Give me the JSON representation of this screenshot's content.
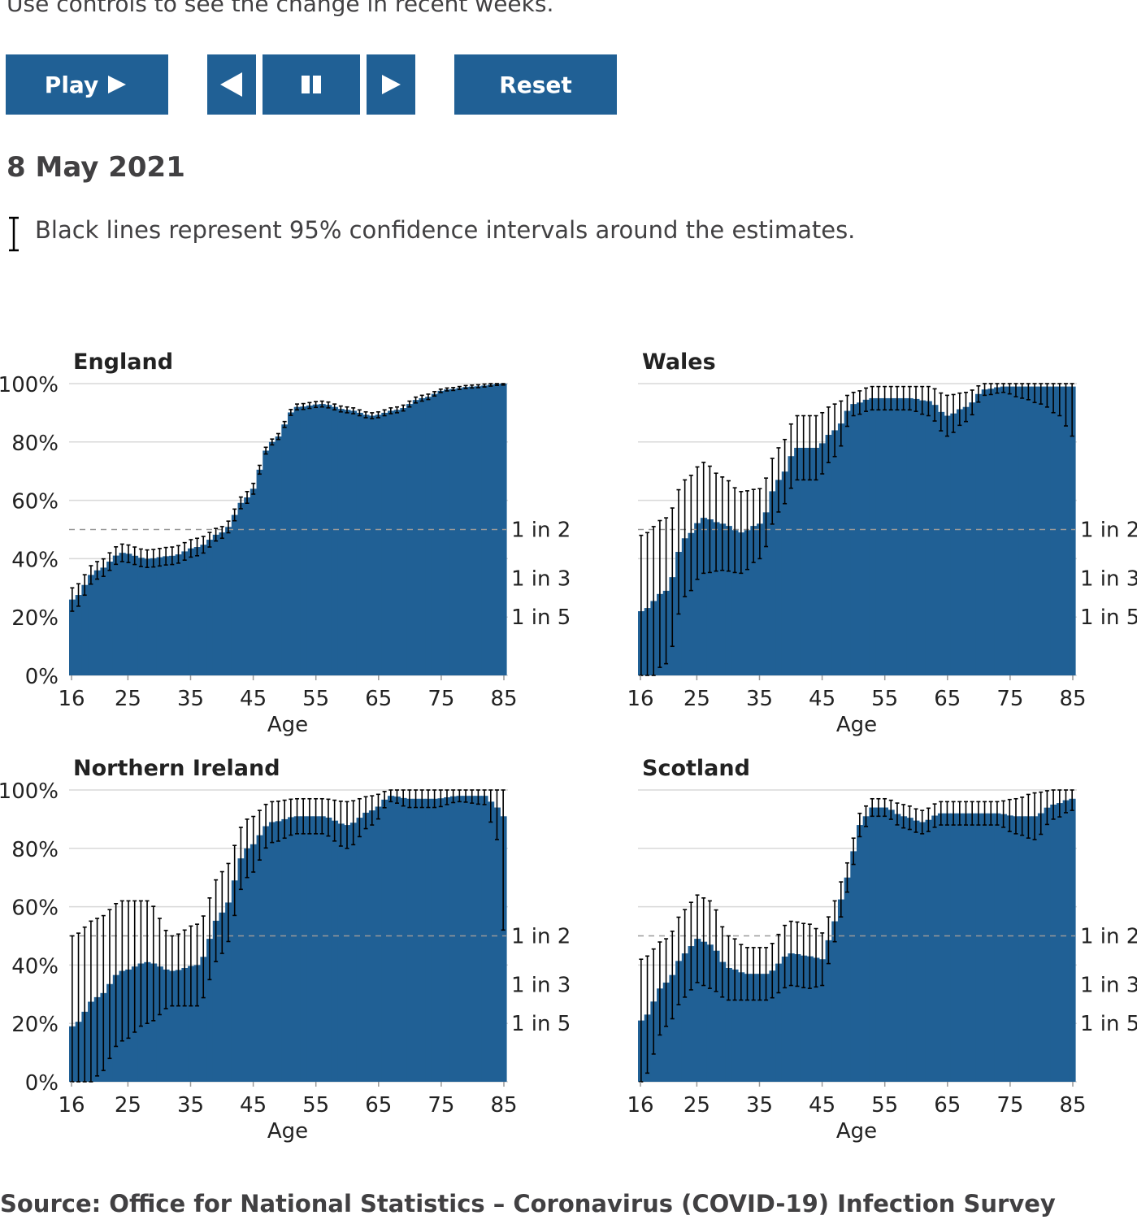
{
  "intro": "Use controls to see the change in recent weeks.",
  "controls": {
    "play_label": "Play",
    "reset_label": "Reset",
    "play_icon": "play-triangle-icon",
    "prev_icon": "step-back-icon",
    "pause_icon": "pause-icon",
    "next_icon": "step-forward-icon"
  },
  "date": "8 May 2021",
  "ci_note": "Black lines represent 95% confidence intervals around the estimates.",
  "source": "Source: Office for National Statistics – Coronavirus (COVID-19) Infection Survey",
  "colors": {
    "bar": "#206095",
    "button": "#206095",
    "error_bar": "#000000",
    "grid": "#d9d9d9",
    "reference_line": "#999999"
  },
  "chart_data": [
    {
      "type": "area",
      "title": "England",
      "xlabel": "Age",
      "xlim": [
        16,
        85
      ],
      "xticks": [
        16,
        25,
        35,
        45,
        55,
        65,
        75,
        85
      ],
      "ylim": [
        0,
        100
      ],
      "yticks": [
        "0%",
        "20%",
        "40%",
        "60%",
        "80%",
        "100%"
      ],
      "reference_lines": [
        {
          "value": 50,
          "label": "1 in 2"
        },
        {
          "value": 33.3,
          "label": "1 in 3"
        },
        {
          "value": 20,
          "label": "1 in 5"
        }
      ],
      "grid": true,
      "series": [
        {
          "ages": [
            16,
            20,
            24,
            28,
            32,
            36,
            40,
            44,
            48,
            52,
            56,
            60,
            64,
            68,
            72,
            76,
            80,
            85
          ],
          "values": [
            26,
            36,
            42,
            40,
            41,
            44,
            49,
            61,
            80,
            92,
            93,
            91,
            89,
            91,
            95,
            98,
            99,
            100
          ],
          "ci_half": [
            4,
            3,
            3,
            3,
            3,
            3,
            2,
            2,
            1,
            1,
            1,
            1,
            1,
            1,
            1,
            0.5,
            0.5,
            0.5
          ]
        }
      ]
    },
    {
      "type": "area",
      "title": "Wales",
      "xlabel": "Age",
      "xlim": [
        16,
        85
      ],
      "xticks": [
        16,
        25,
        35,
        45,
        55,
        65,
        75,
        85
      ],
      "ylim": [
        0,
        100
      ],
      "yticks": [
        "0%",
        "20%",
        "40%",
        "60%",
        "80%",
        "100%"
      ],
      "reference_lines": [
        {
          "value": 50,
          "label": "1 in 2"
        },
        {
          "value": 33.3,
          "label": "1 in 3"
        },
        {
          "value": 20,
          "label": "1 in 5"
        }
      ],
      "grid": true,
      "series": [
        {
          "ages": [
            16,
            20,
            23,
            26,
            29,
            32,
            35,
            38,
            41,
            44,
            47,
            50,
            53,
            56,
            59,
            62,
            65,
            68,
            71,
            74,
            77,
            80,
            83,
            85
          ],
          "values": [
            22,
            29,
            47,
            54,
            52,
            49,
            52,
            67,
            78,
            78,
            84,
            93,
            95,
            95,
            95,
            94,
            89,
            92,
            98,
            99,
            99,
            99,
            99,
            99
          ],
          "ci_half": [
            26,
            25,
            20,
            19,
            16,
            14,
            12,
            11,
            11,
            11,
            9,
            4,
            4,
            4,
            4,
            5,
            7,
            5,
            2,
            2,
            4,
            6,
            10,
            17
          ]
        }
      ]
    },
    {
      "type": "area",
      "title": "Northern Ireland",
      "xlabel": "Age",
      "xlim": [
        16,
        85
      ],
      "xticks": [
        16,
        25,
        35,
        45,
        55,
        65,
        75,
        85
      ],
      "ylim": [
        0,
        100
      ],
      "yticks": [
        "0%",
        "20%",
        "40%",
        "60%",
        "80%",
        "100%"
      ],
      "reference_lines": [
        {
          "value": 50,
          "label": "1 in 2"
        },
        {
          "value": 33.3,
          "label": "1 in 3"
        },
        {
          "value": 20,
          "label": "1 in 5"
        }
      ],
      "grid": true,
      "series": [
        {
          "ages": [
            16,
            20,
            24,
            28,
            32,
            36,
            40,
            44,
            48,
            52,
            56,
            60,
            64,
            67,
            70,
            74,
            78,
            82,
            84,
            85
          ],
          "values": [
            19,
            29,
            38,
            41,
            38,
            40,
            58,
            80,
            89,
            91,
            91,
            88,
            93,
            98,
            97,
            97,
            98,
            98,
            94,
            91
          ],
          "ci_half": [
            31,
            27,
            24,
            21,
            12,
            14,
            14,
            10,
            7,
            6,
            6,
            8,
            5,
            2,
            3,
            3,
            2,
            3,
            11,
            39
          ]
        }
      ]
    },
    {
      "type": "area",
      "title": "Scotland",
      "xlabel": "Age",
      "xlim": [
        16,
        85
      ],
      "xticks": [
        16,
        25,
        35,
        45,
        55,
        65,
        75,
        85
      ],
      "ylim": [
        0,
        100
      ],
      "yticks": [
        "0%",
        "20%",
        "40%",
        "60%",
        "80%",
        "100%"
      ],
      "reference_lines": [
        {
          "value": 50,
          "label": "1 in 2"
        },
        {
          "value": 33.3,
          "label": "1 in 3"
        },
        {
          "value": 20,
          "label": "1 in 5"
        }
      ],
      "grid": true,
      "series": [
        {
          "ages": [
            16,
            20,
            23,
            25,
            27,
            30,
            33,
            36,
            40,
            43,
            45,
            47,
            49,
            51,
            53,
            55,
            58,
            61,
            64,
            67,
            70,
            73,
            76,
            79,
            82,
            85
          ],
          "values": [
            21,
            34,
            44,
            49,
            47,
            39,
            37,
            37,
            44,
            43,
            42,
            55,
            70,
            88,
            94,
            94,
            91,
            89,
            92,
            92,
            92,
            92,
            91,
            91,
            95,
            97
          ],
          "ci_half": [
            21,
            15,
            15,
            15,
            15,
            11,
            9,
            9,
            11,
            11,
            9,
            7,
            5,
            4,
            3,
            3,
            4,
            4,
            4,
            4,
            4,
            4,
            6,
            8,
            5,
            4
          ]
        }
      ]
    }
  ]
}
